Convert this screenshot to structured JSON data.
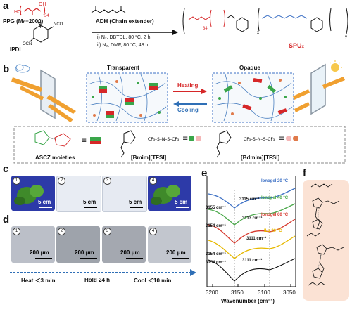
{
  "panel_labels": {
    "a": "a",
    "b": "b",
    "c": "c",
    "d": "d",
    "e": "e",
    "f": "f"
  },
  "a": {
    "ppg_label": "PPG (M",
    "ppg_sub": "n",
    "ppg_rest": "=2000)",
    "ppg_repeat": "34",
    "oh": "OH",
    "ho": "HO",
    "plus": "+",
    "ipdi": "IPDI",
    "ocn": "OCN",
    "nco": "NCO",
    "adh_label": "ADH (Chain extender)",
    "cond1": "i) N₂, DBTDL, 80 °C, 2 h",
    "cond2": "ii) N₂, DMF, 80 °C, 48 h",
    "spu": "SPU",
    "spu_sub": "x",
    "sub_x": "x",
    "sub_y": "y",
    "sub_34": "34"
  },
  "b": {
    "transparent": "Transparent",
    "opaque": "Opaque",
    "heating": "Heating",
    "cooling": "Cooling",
    "ascz": "ASCZ moieties",
    "bmim": "[Bmim][TFSI]",
    "bdmim": "[Bdmim][TFSI]",
    "tfsi": "CF₃–S–N–S–CF₃"
  },
  "c": {
    "scale": [
      "5 cm",
      "5 cm",
      "5 cm",
      "5 cm"
    ],
    "nums": [
      "1",
      "2",
      "3",
      "4"
    ]
  },
  "d": {
    "scale": [
      "200 μm",
      "200 μm",
      "200 μm",
      "200 μm"
    ],
    "nums": [
      "1",
      "2",
      "3",
      "4"
    ],
    "timeline": [
      "Heat ＜3 min",
      "Hold 24 h",
      "Cool ＜10 min"
    ]
  },
  "e": {
    "xlabel": "Wavenumber (cm⁻¹)",
    "xticks": [
      "3200",
      "3150",
      "3100",
      "3050"
    ],
    "series": [
      {
        "name": "Ionogel 20 °C",
        "color": "#3b6fc4"
      },
      {
        "name": "Ionogel 40 °C",
        "color": "#4aa84a"
      },
      {
        "name": "Ionogel 60 °C",
        "color": "#d63a2f"
      },
      {
        "name": "ILs 20 °C",
        "color": "#e6b800"
      }
    ],
    "peaks": [
      "3155 cm⁻¹",
      "3115 cm⁻¹",
      "3154 cm⁻¹",
      "3113 cm⁻¹",
      "3111 cm⁻¹",
      "3154 cm⁻¹",
      "3111 cm⁻¹",
      "3154 cm⁻¹"
    ]
  },
  "colors": {
    "red": "#d62728",
    "blue": "#2f6fb6",
    "green": "#3aa64a",
    "orange": "#f0a030",
    "pink_panel": "#fbe2d4"
  }
}
